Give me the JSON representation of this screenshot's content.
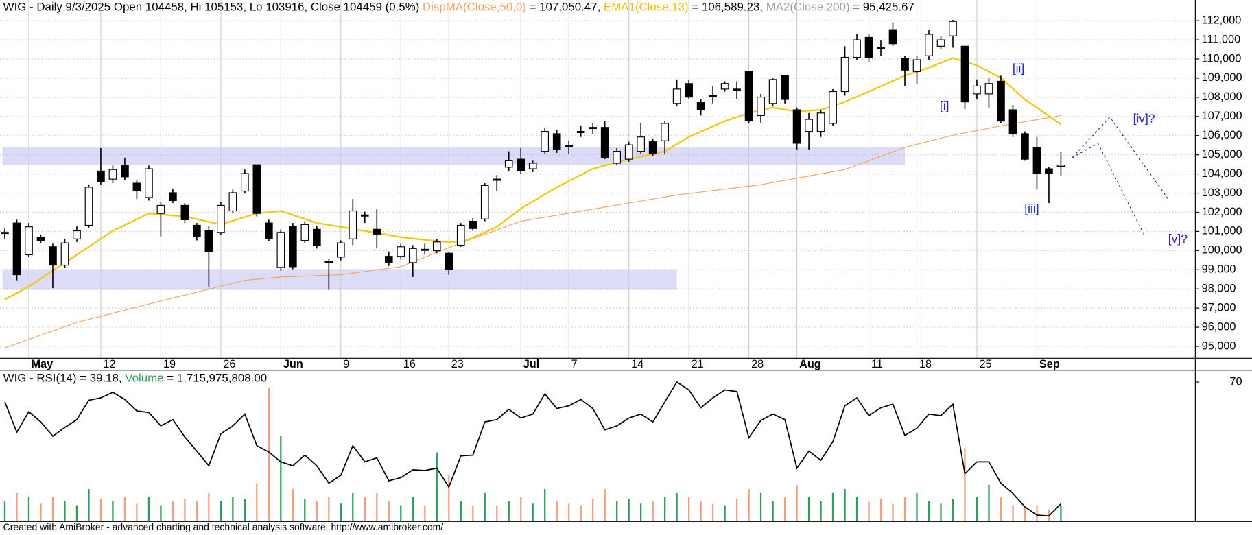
{
  "chart_data": [
    {
      "type": "candlestick",
      "title": [
        {
          "text": "WIG - Daily 9/3/2025 Open 104458, Hi 105153, Lo 103916, Close 104459 (0.5%) ",
          "color": "#000000"
        },
        {
          "text": "DispMA(Close,50,0)",
          "color": "#f4a460"
        },
        {
          "text": " = 107,050.47, ",
          "color": "#000000"
        },
        {
          "text": "EMA1(Close,13)",
          "color": "#e8c000"
        },
        {
          "text": " = 106,589.23, ",
          "color": "#000000"
        },
        {
          "text": "MA2(Close,200)",
          "color": "#a0a0a0"
        },
        {
          "text": " = 95,425.67",
          "color": "#000000"
        }
      ],
      "open": [
        100900,
        101440,
        99780,
        100700,
        100200,
        99240,
        100610,
        101320,
        104150,
        103730,
        104440,
        103520,
        102770,
        101940,
        103020,
        102360,
        101320,
        101030,
        100950,
        102070,
        103110,
        104480,
        101440,
        99120,
        101280,
        100530,
        101110,
        99450,
        99660,
        100610,
        101860,
        101110,
        99700,
        99700,
        99370,
        100070,
        99990,
        99860,
        100280,
        101530,
        101650,
        103730,
        104350,
        104770,
        104270,
        105180,
        106100,
        105480,
        106220,
        106430,
        106430,
        104560,
        104770,
        105180,
        105680,
        105730,
        107680,
        108720,
        107760,
        108090,
        108430,
        108430,
        109340,
        107050,
        107680,
        109130,
        107350,
        106220,
        106220,
        106640,
        108300,
        110090,
        111130,
        110590,
        111500,
        110050,
        109340,
        110170,
        110670,
        111210,
        110670,
        108180,
        108180,
        108840,
        107350,
        106100,
        105390,
        104270,
        104458
      ],
      "high": [
        101150,
        101610,
        101440,
        100820,
        100360,
        100610,
        101280,
        103440,
        105350,
        104440,
        104850,
        103690,
        104440,
        102520,
        103230,
        102480,
        101440,
        101280,
        102520,
        103190,
        104230,
        104480,
        101610,
        101110,
        101440,
        101530,
        101280,
        99570,
        100530,
        102690,
        102030,
        102190,
        99950,
        100360,
        100280,
        100360,
        100610,
        99950,
        101440,
        101690,
        103520,
        103940,
        105180,
        105350,
        104690,
        106430,
        106310,
        105730,
        106510,
        106640,
        106760,
        105350,
        105680,
        106640,
        105850,
        106760,
        108930,
        108930,
        107890,
        108590,
        108840,
        108840,
        109340,
        108180,
        109010,
        109130,
        107470,
        107180,
        107350,
        108430,
        110670,
        111290,
        111290,
        111000,
        111920,
        110170,
        110170,
        111500,
        111210,
        112040,
        110670,
        108930,
        109010,
        109130,
        107600,
        106220,
        105930,
        104350,
        105153
      ],
      "low": [
        100610,
        98450,
        99660,
        100410,
        98040,
        99120,
        100450,
        101200,
        103440,
        103520,
        103690,
        102690,
        102610,
        100740,
        102480,
        101440,
        100530,
        98120,
        100820,
        101940,
        102980,
        101780,
        100490,
        98950,
        99030,
        100400,
        100110,
        97950,
        99490,
        100280,
        101440,
        100110,
        99200,
        99530,
        98620,
        99780,
        99860,
        98740,
        100200,
        101030,
        101530,
        103110,
        104150,
        104020,
        104100,
        105060,
        105100,
        105060,
        105930,
        106100,
        104770,
        104440,
        104640,
        105060,
        104940,
        105020,
        107550,
        107890,
        107050,
        107680,
        108300,
        107890,
        106640,
        106640,
        107550,
        107680,
        105270,
        105270,
        105930,
        106510,
        108090,
        109960,
        109840,
        110170,
        110670,
        108590,
        108720,
        109960,
        110500,
        110590,
        107390,
        107890,
        107470,
        106640,
        105930,
        104690,
        103190,
        102480,
        103916
      ],
      "close": [
        100950,
        98740,
        101240,
        100530,
        99240,
        100400,
        101030,
        103310,
        103600,
        104230,
        103850,
        103110,
        104270,
        102360,
        102610,
        101610,
        100740,
        99950,
        102360,
        103020,
        104020,
        101940,
        100610,
        100950,
        99160,
        101360,
        100280,
        99410,
        100400,
        102070,
        101820,
        100860,
        99370,
        100200,
        100110,
        100030,
        100450,
        99030,
        101320,
        101150,
        103400,
        103690,
        104690,
        104150,
        104560,
        106220,
        105270,
        105430,
        106180,
        106390,
        104850,
        105180,
        105520,
        105930,
        105060,
        106640,
        108430,
        108010,
        107350,
        108050,
        108720,
        108380,
        106760,
        108010,
        108930,
        107890,
        105600,
        106850,
        107180,
        108300,
        110090,
        111000,
        110090,
        110550,
        110800,
        109420,
        109960,
        111290,
        111000,
        111960,
        107760,
        108590,
        108720,
        106760,
        106100,
        104770,
        104020,
        104020,
        104459
      ],
      "up_color": "#ffffff",
      "down_color": "#000000",
      "overlays": [
        {
          "color": "#f4a460",
          "x": [
            0,
            6,
            13,
            20,
            23,
            28,
            33,
            38,
            43,
            50,
            56,
            63,
            70,
            75,
            79,
            83,
            88
          ],
          "values": [
            94920,
            96250,
            97370,
            98450,
            98620,
            98740,
            99160,
            100400,
            101530,
            102270,
            102900,
            103440,
            104230,
            105390,
            106020,
            106510,
            107050.47
          ]
        },
        {
          "color": "#f2c811",
          "x": [
            0,
            2,
            6,
            9,
            12,
            15,
            18,
            21,
            23,
            26,
            30,
            33,
            36,
            38,
            41,
            43,
            46,
            49,
            52,
            55,
            57,
            60,
            62,
            64,
            66,
            68,
            70,
            72,
            75,
            77,
            79,
            81,
            83,
            85,
            88
          ],
          "values": [
            97450,
            98120,
            99780,
            101030,
            101940,
            101780,
            101360,
            101940,
            102070,
            101440,
            101030,
            100700,
            100490,
            100400,
            101240,
            102190,
            103310,
            104270,
            104770,
            105180,
            105930,
            106760,
            107180,
            107470,
            107260,
            107350,
            107760,
            108300,
            109130,
            109550,
            110050,
            109670,
            109010,
            107890,
            106589.23
          ]
        }
      ],
      "zones": [
        {
          "from": 104480,
          "to": 105390,
          "start": -0.2,
          "end": 75,
          "color": "#dcdcf8"
        },
        {
          "from": 97950,
          "to": 99030,
          "start": -0.2,
          "end": 56,
          "color": "#dcdcf8"
        }
      ],
      "annotations": [
        "[i]",
        "[ii]",
        "[iii]",
        "[iv]?",
        "[v]?"
      ],
      "xlim": [
        -0.4,
        99.2
      ],
      "ylim": [
        94380,
        113080
      ],
      "xticks": [
        {
          "value": 2,
          "label": "May"
        },
        {
          "value": 8,
          "label": "12"
        },
        {
          "value": 13,
          "label": "19"
        },
        {
          "value": 18,
          "label": "26"
        },
        {
          "value": 23,
          "label": "Jun"
        },
        {
          "value": 28,
          "label": "9"
        },
        {
          "value": 33,
          "label": "16"
        },
        {
          "value": 37,
          "label": "23"
        },
        {
          "value": 43,
          "label": "Jul"
        },
        {
          "value": 47,
          "label": "7"
        },
        {
          "value": 52,
          "label": "14"
        },
        {
          "value": 57,
          "label": "21"
        },
        {
          "value": 62,
          "label": "28"
        },
        {
          "value": 66,
          "label": "Aug"
        },
        {
          "value": 72,
          "label": "11"
        },
        {
          "value": 76,
          "label": "18"
        },
        {
          "value": 81,
          "label": "25"
        },
        {
          "value": 86,
          "label": "Sep"
        }
      ],
      "yticks": [
        {
          "value": 95000,
          "label": "95,000"
        },
        {
          "value": 96000,
          "label": "96,000"
        },
        {
          "value": 97000,
          "label": "97,000"
        },
        {
          "value": 98000,
          "label": "98,000"
        },
        {
          "value": 99000,
          "label": "99,000"
        },
        {
          "value": 100000,
          "label": "100,000"
        },
        {
          "value": 101000,
          "label": "101,000"
        },
        {
          "value": 102000,
          "label": "102,000"
        },
        {
          "value": 103000,
          "label": "103,000"
        },
        {
          "value": 104000,
          "label": "104,000"
        },
        {
          "value": 105000,
          "label": "105,000"
        },
        {
          "value": 106000,
          "label": "106,000"
        },
        {
          "value": 107000,
          "label": "107,000"
        },
        {
          "value": 108000,
          "label": "108,000"
        },
        {
          "value": 109000,
          "label": "109,000"
        },
        {
          "value": 110000,
          "label": "110,000"
        },
        {
          "value": 111000,
          "label": "111,000"
        },
        {
          "value": 112000,
          "label": "112,000"
        }
      ],
      "grid": true
    },
    {
      "type": "line",
      "title": [
        {
          "text": "WIG - RSI(14) = 39.18, ",
          "color": "#000000"
        },
        {
          "text": "Volume",
          "color": "#2e9e5b"
        },
        {
          "text": " = 1,715,975,808.00",
          "color": "#000000"
        }
      ],
      "color": "#000000",
      "values": [
        65.0,
        57.3,
        62.5,
        59.9,
        56.3,
        58.5,
        60.5,
        65.4,
        66.0,
        67.4,
        65.6,
        62.7,
        62.3,
        58.9,
        60.5,
        56.1,
        52.5,
        48.8,
        56.9,
        58.9,
        61.9,
        53.9,
        52.3,
        49.8,
        48.8,
        51.5,
        48.8,
        44.4,
        46.4,
        53.9,
        49.8,
        50.8,
        45.0,
        45.8,
        47.8,
        47.6,
        48.2,
        43.4,
        51.3,
        51.5,
        59.9,
        60.5,
        63.1,
        60.9,
        61.9,
        67.0,
        63.3,
        64.0,
        65.6,
        63.3,
        57.9,
        58.9,
        60.9,
        61.9,
        59.9,
        65.0,
        70.0,
        68.0,
        63.5,
        66.0,
        68.0,
        67.6,
        55.9,
        60.3,
        61.9,
        60.5,
        48.2,
        52.5,
        50.2,
        54.9,
        64.0,
        66.0,
        61.5,
        63.5,
        64.4,
        56.5,
        58.3,
        61.9,
        61.5,
        64.4,
        46.8,
        49.8,
        49.8,
        44.4,
        41.8,
        38.4,
        36.3,
        36.1,
        39.18
      ],
      "ylim": [
        34.7,
        73.0
      ],
      "yticks": [
        70
      ],
      "volume": {
        "values": [
          2145000000,
          3003000000,
          2574000000,
          1888000000,
          2574000000,
          2145000000,
          1716000000,
          3432000000,
          2402000000,
          2145000000,
          2574000000,
          1888000000,
          2574000000,
          1716000000,
          2145000000,
          2402000000,
          2145000000,
          3003000000,
          2145000000,
          2574000000,
          2402000000,
          4033000000,
          14157000000,
          9009000000,
          3432000000,
          2402000000,
          2145000000,
          2574000000,
          1888000000,
          3003000000,
          2574000000,
          3003000000,
          2145000000,
          1716000000,
          2574000000,
          1716000000,
          7293000000,
          4891000000,
          2145000000,
          1716000000,
          3003000000,
          1716000000,
          2145000000,
          2574000000,
          1888000000,
          3432000000,
          2145000000,
          1888000000,
          1716000000,
          2402000000,
          3432000000,
          2145000000,
          2402000000,
          1888000000,
          2145000000,
          2574000000,
          3003000000,
          2574000000,
          2145000000,
          1888000000,
          1716000000,
          2402000000,
          3432000000,
          3003000000,
          2145000000,
          2574000000,
          3861000000,
          2574000000,
          2145000000,
          3003000000,
          3432000000,
          2574000000,
          2145000000,
          2402000000,
          1888000000,
          2574000000,
          3003000000,
          2145000000,
          1888000000,
          2402000000,
          7722000000,
          2574000000,
          3861000000,
          2574000000,
          1716000000,
          1544000000,
          1716000000,
          1287000000,
          1715975808
        ],
        "ylim": [
          0,
          16000000000
        ],
        "up_color": "#2e9e5b",
        "down_color": "#f0a080"
      }
    }
  ],
  "footer": "Created with AmiBroker - advanced charting and technical analysis software. http://www.amibroker.com/"
}
